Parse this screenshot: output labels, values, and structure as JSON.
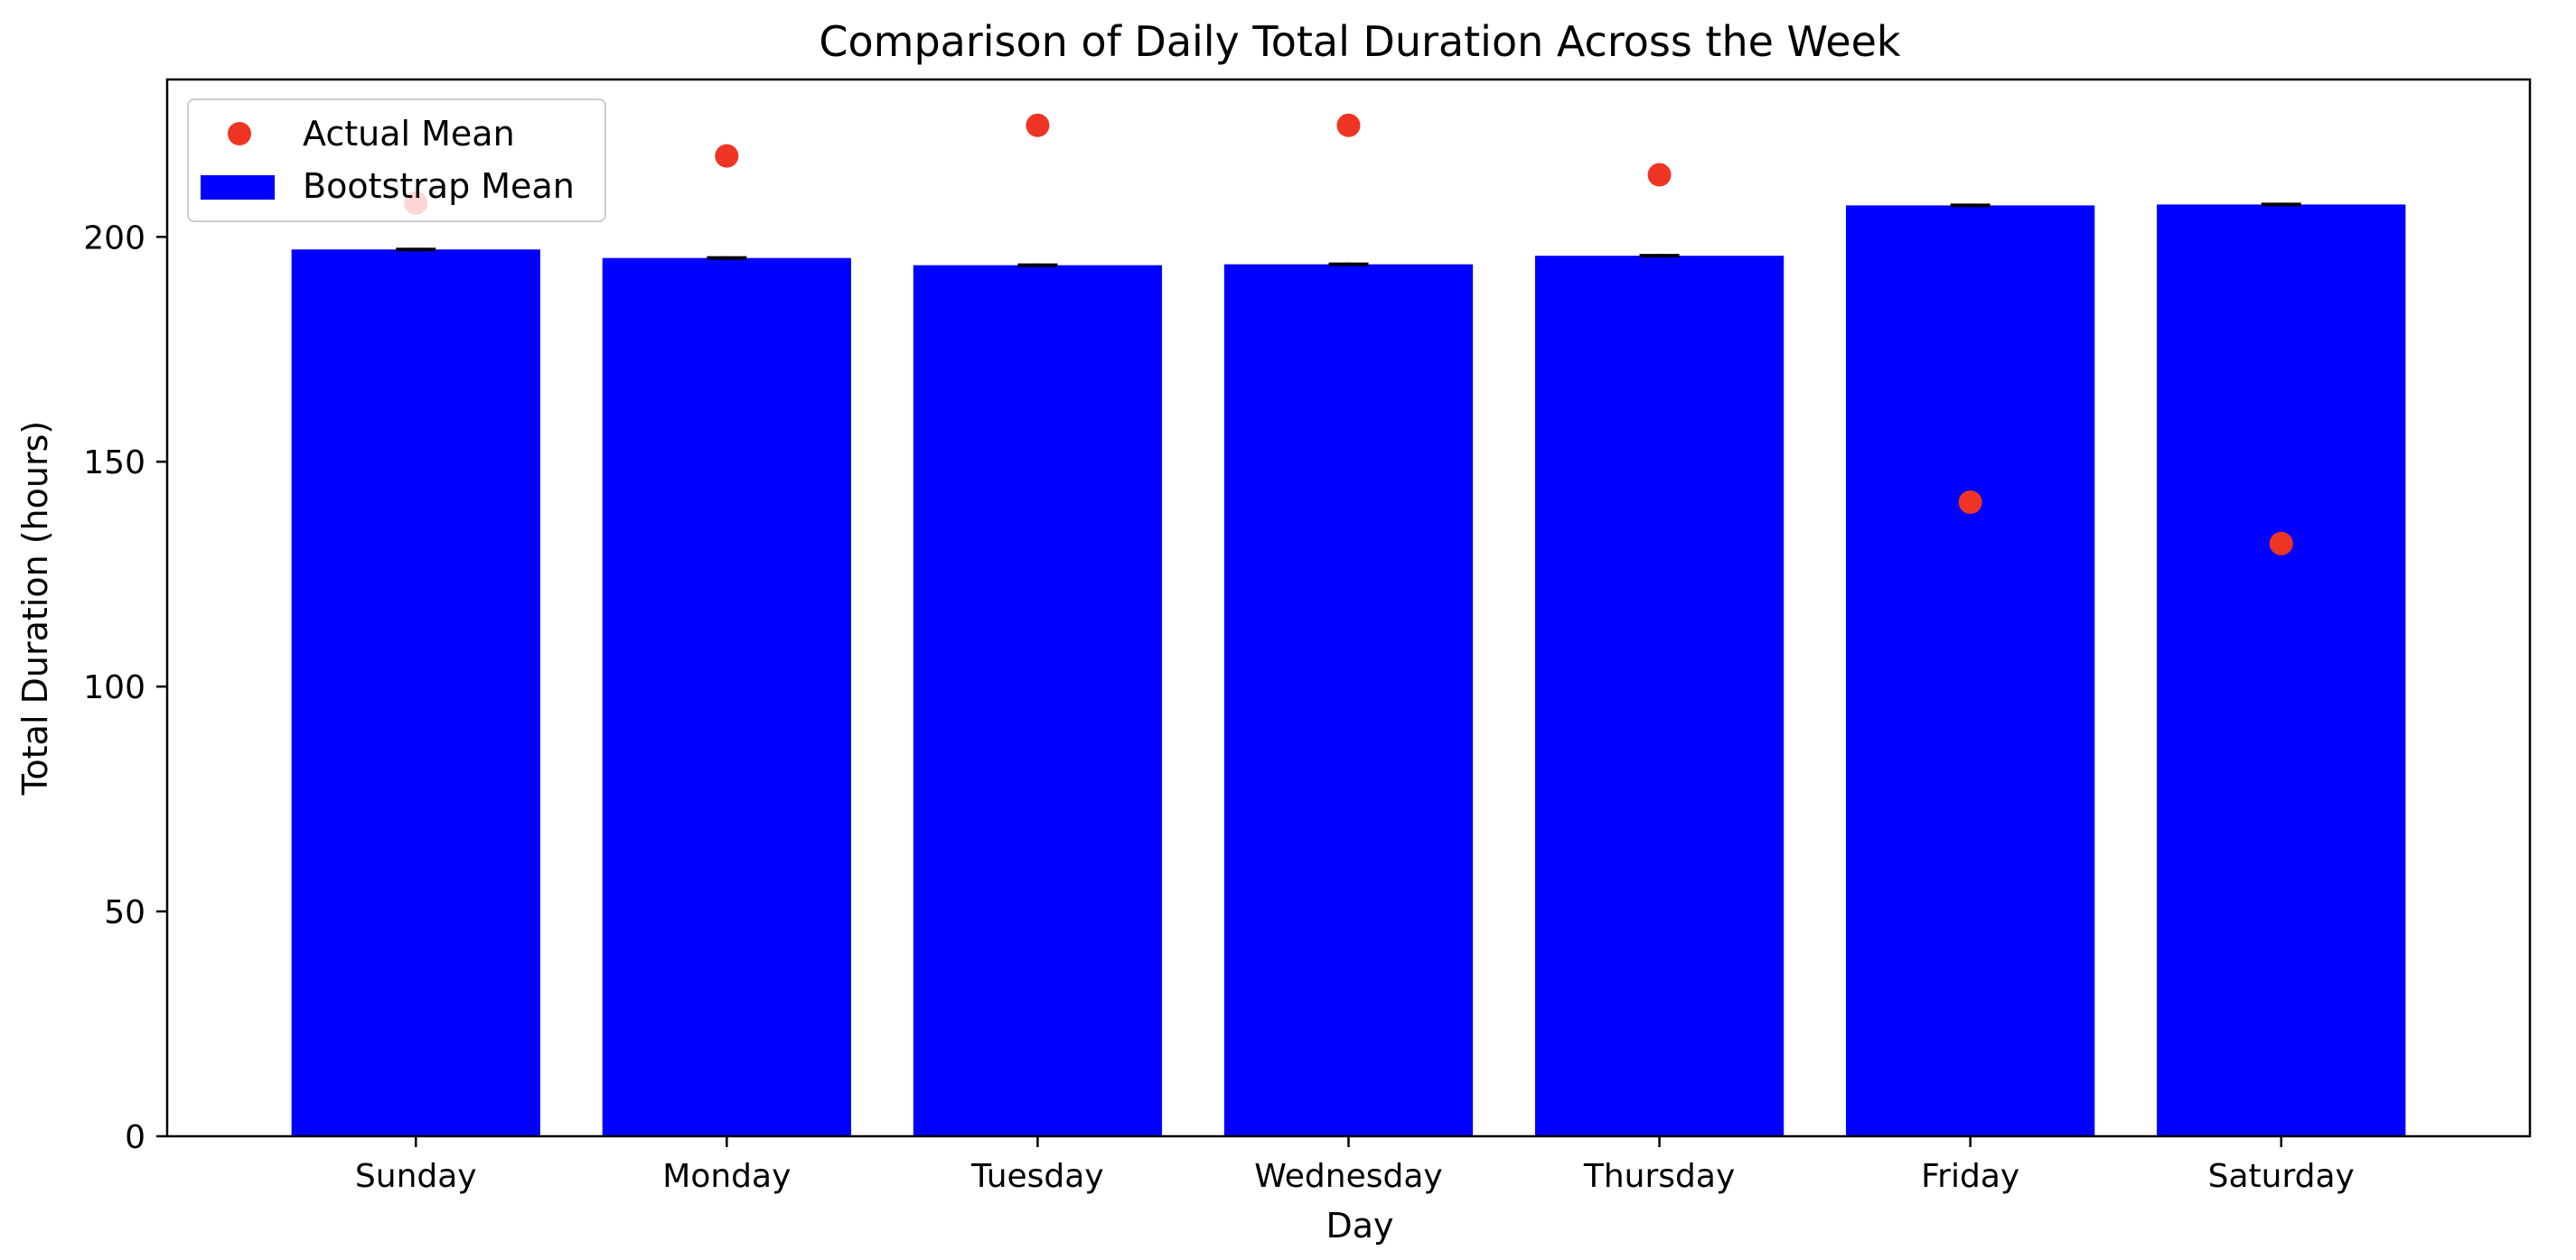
{
  "chart_data": {
    "type": "bar",
    "title": "Comparison of Daily Total Duration Across the Week",
    "xlabel": "Day",
    "ylabel": "Total Duration (hours)",
    "ylim": [
      0,
      235
    ],
    "yticks": [
      0,
      50,
      100,
      150,
      200
    ],
    "grid": false,
    "legend_position": "top-left",
    "categories": [
      "Sunday",
      "Monday",
      "Tuesday",
      "Wednesday",
      "Thursday",
      "Friday",
      "Saturday"
    ],
    "series": [
      {
        "name": "Bootstrap Mean",
        "mark": "bar",
        "color": "#0000ff",
        "values": [
          197.2,
          195.3,
          193.7,
          193.9,
          195.8,
          207.0,
          207.2
        ],
        "errors": [
          0.4,
          0.4,
          0.4,
          0.4,
          0.4,
          0.4,
          0.4
        ]
      },
      {
        "name": "Actual Mean",
        "mark": "scatter",
        "color": "#ee3524",
        "values": [
          207.5,
          218.0,
          224.8,
          224.8,
          213.8,
          141.0,
          131.8
        ]
      }
    ]
  }
}
